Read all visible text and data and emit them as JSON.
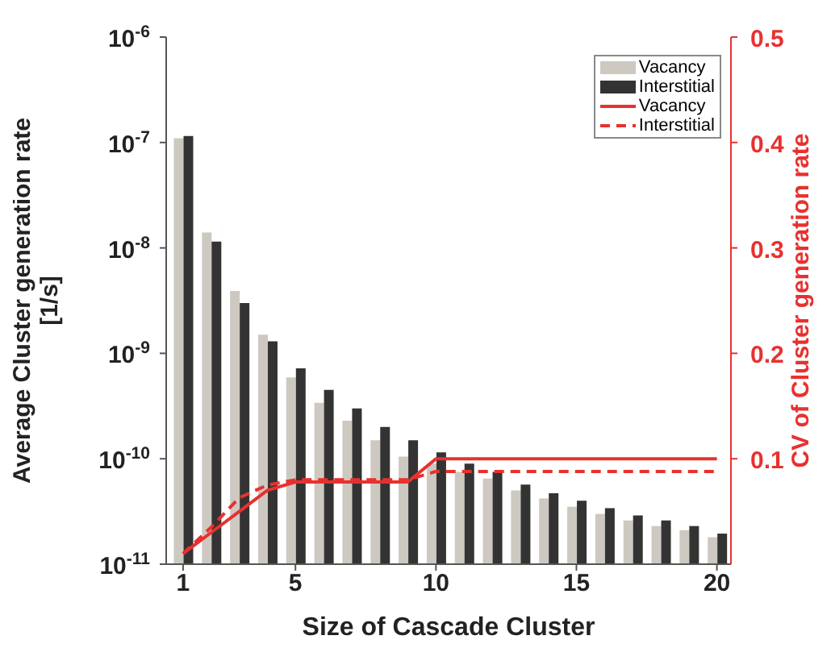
{
  "chart_data": {
    "type": "bar",
    "xlabel": "Size of Cascade Cluster",
    "ylabel": "Average Cluster generation rate\n[1/s]",
    "y2label": "CV of Cluster generation rate",
    "x": [
      1,
      2,
      3,
      4,
      5,
      6,
      7,
      8,
      9,
      10,
      11,
      12,
      13,
      14,
      15,
      16,
      17,
      18,
      19,
      20
    ],
    "xlim": [
      0.4,
      20.5
    ],
    "xticks": [
      1,
      5,
      10,
      15,
      20
    ],
    "log": "y",
    "ylim": [
      1e-11,
      1e-06
    ],
    "yticks": [
      {
        "value": 1e-11,
        "label": "10$^{-11}$"
      },
      {
        "value": 1e-10,
        "label": "10$^{-10}$"
      },
      {
        "value": 1e-09,
        "label": "10$^{-9}$"
      },
      {
        "value": 1e-08,
        "label": "10$^{-8}$"
      },
      {
        "value": 1e-07,
        "label": "10$^{-7}$"
      },
      {
        "value": 1e-06,
        "label": "10$^{-6}$"
      }
    ],
    "y2lim": [
      0,
      0.5
    ],
    "y2ticks": [
      0.1,
      0.2,
      0.3,
      0.4,
      0.5
    ],
    "legend": "top right",
    "marker": "none",
    "series": [
      {
        "name": "Vacancy",
        "color": "#cdc9c1",
        "values": [
          1.1e-07,
          1.4e-08,
          3.9e-09,
          1.5e-09,
          5.9e-10,
          3.4e-10,
          2.3e-10,
          1.5e-10,
          1.05e-10,
          9e-11,
          7.5e-11,
          6.5e-11,
          5e-11,
          4.2e-11,
          3.5e-11,
          3e-11,
          2.6e-11,
          2.3e-11,
          2.1e-11,
          1.8e-11
        ]
      },
      {
        "name": "Interstitial",
        "color": "#333333",
        "values": [
          1.15e-07,
          1.15e-08,
          3e-09,
          1.3e-09,
          7.2e-10,
          4.5e-10,
          3e-10,
          2e-10,
          1.5e-10,
          1.15e-10,
          9e-11,
          7.5e-11,
          5.7e-11,
          4.7e-11,
          4e-11,
          3.4e-11,
          2.9e-11,
          2.6e-11,
          2.3e-11,
          1.95e-11
        ]
      },
      {
        "name": "Vacancy",
        "type": "line",
        "axis": "y2",
        "color": "#e8312f",
        "line_style": "solid",
        "values": [
          0.01,
          0.03,
          0.05,
          0.07,
          0.078,
          0.078,
          0.078,
          0.078,
          0.078,
          0.1,
          0.1,
          0.1,
          0.1,
          0.1,
          0.1,
          0.1,
          0.1,
          0.1,
          0.1,
          0.1
        ]
      },
      {
        "name": "Interstitial",
        "type": "line",
        "axis": "y2",
        "color": "#e8312f",
        "line_style": "dashed",
        "values": [
          0.01,
          0.035,
          0.063,
          0.075,
          0.08,
          0.08,
          0.08,
          0.08,
          0.08,
          0.088,
          0.088,
          0.088,
          0.088,
          0.088,
          0.088,
          0.088,
          0.088,
          0.088,
          0.088,
          0.088
        ]
      }
    ]
  }
}
